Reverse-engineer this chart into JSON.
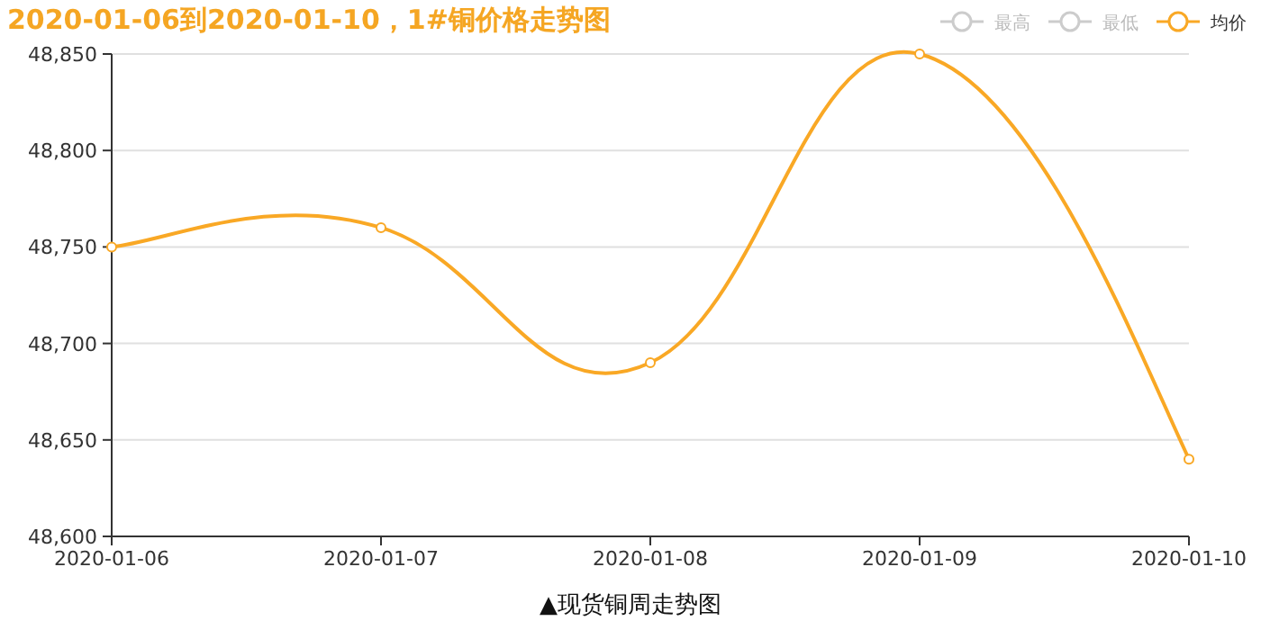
{
  "chart_data": {
    "type": "line",
    "title": "2020-01-06到2020-01-10，1#铜价格走势图",
    "x": [
      "2020-01-06",
      "2020-01-07",
      "2020-01-08",
      "2020-01-09",
      "2020-01-10"
    ],
    "series": [
      {
        "name": "最高",
        "color": "#cccccc",
        "values": [
          null,
          null,
          null,
          null,
          null
        ]
      },
      {
        "name": "最低",
        "color": "#cccccc",
        "values": [
          null,
          null,
          null,
          null,
          null
        ]
      },
      {
        "name": "均价",
        "color": "#f9a825",
        "values": [
          48750,
          48760,
          48690,
          48850,
          48640
        ]
      }
    ],
    "xlim": [
      "2020-01-06",
      "2020-01-10"
    ],
    "xticks": [
      "2020-01-06",
      "2020-01-07",
      "2020-01-08",
      "2020-01-09",
      "2020-01-10"
    ],
    "ylim": [
      48600,
      48850
    ],
    "yticks": [
      {
        "value": 48600,
        "label": "48,600"
      },
      {
        "value": 48650,
        "label": "48,650"
      },
      {
        "value": 48700,
        "label": "48,700"
      },
      {
        "value": 48750,
        "label": "48,750"
      },
      {
        "value": 48800,
        "label": "48,800"
      },
      {
        "value": 48850,
        "label": "48,850"
      }
    ],
    "grid": "y",
    "legend": "top right",
    "marker": "circle",
    "annotations": [
      "▲现货铜周走势图"
    ]
  }
}
